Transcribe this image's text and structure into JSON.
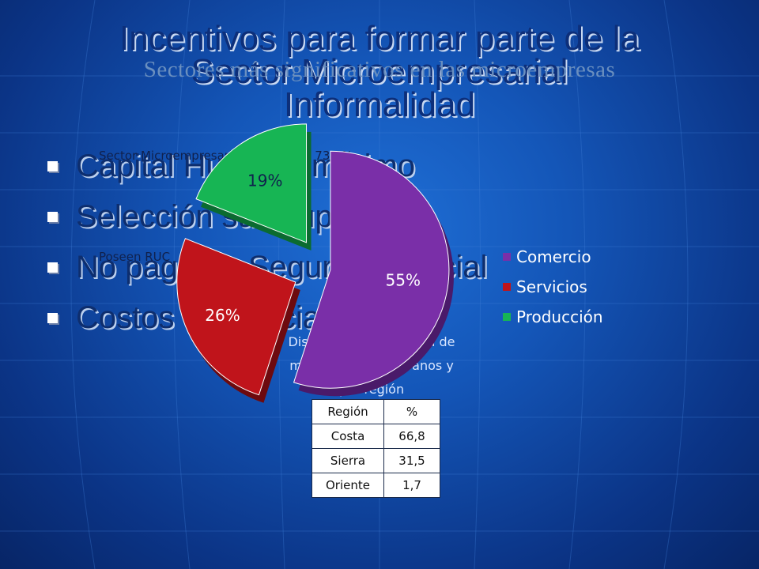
{
  "slide": {
    "title_line1": "Incentivos para formar parte de la",
    "title_line2": "Sector Microempresarial",
    "title_line3": "Informalidad",
    "subtitle": "Sectores más significativos en las microempresas",
    "bullets": [
      "Capital Humano mínimo",
      "Selección su ocupación",
      "No pago de Seguridad Social",
      "Costos despreciables"
    ],
    "overlay_top": "Sector Microempresarial representa   73,8%",
    "overlay_left": "Poseen RUC",
    "caption_lines": [
      "Distribución geográfica de",
      "microempresas urbanos y",
      "por región"
    ]
  },
  "colors": {
    "comercio": "#7a2fa8",
    "servicios": "#c0141b",
    "produccion": "#17b554"
  },
  "chart_data": {
    "type": "pie",
    "series": [
      {
        "name": "Comercio",
        "value": 55,
        "label": "55%"
      },
      {
        "name": "Servicios",
        "value": 26,
        "label": "26%"
      },
      {
        "name": "Producción",
        "value": 19,
        "label": "19%"
      }
    ],
    "legend": [
      "Comercio",
      "Servicios",
      "Producción"
    ],
    "legend_position": "right"
  },
  "table": {
    "headers": [
      "Región",
      "%"
    ],
    "rows": [
      [
        "Costa",
        "66,8"
      ],
      [
        "Sierra",
        "31,5"
      ],
      [
        "Oriente",
        "1,7"
      ]
    ]
  }
}
